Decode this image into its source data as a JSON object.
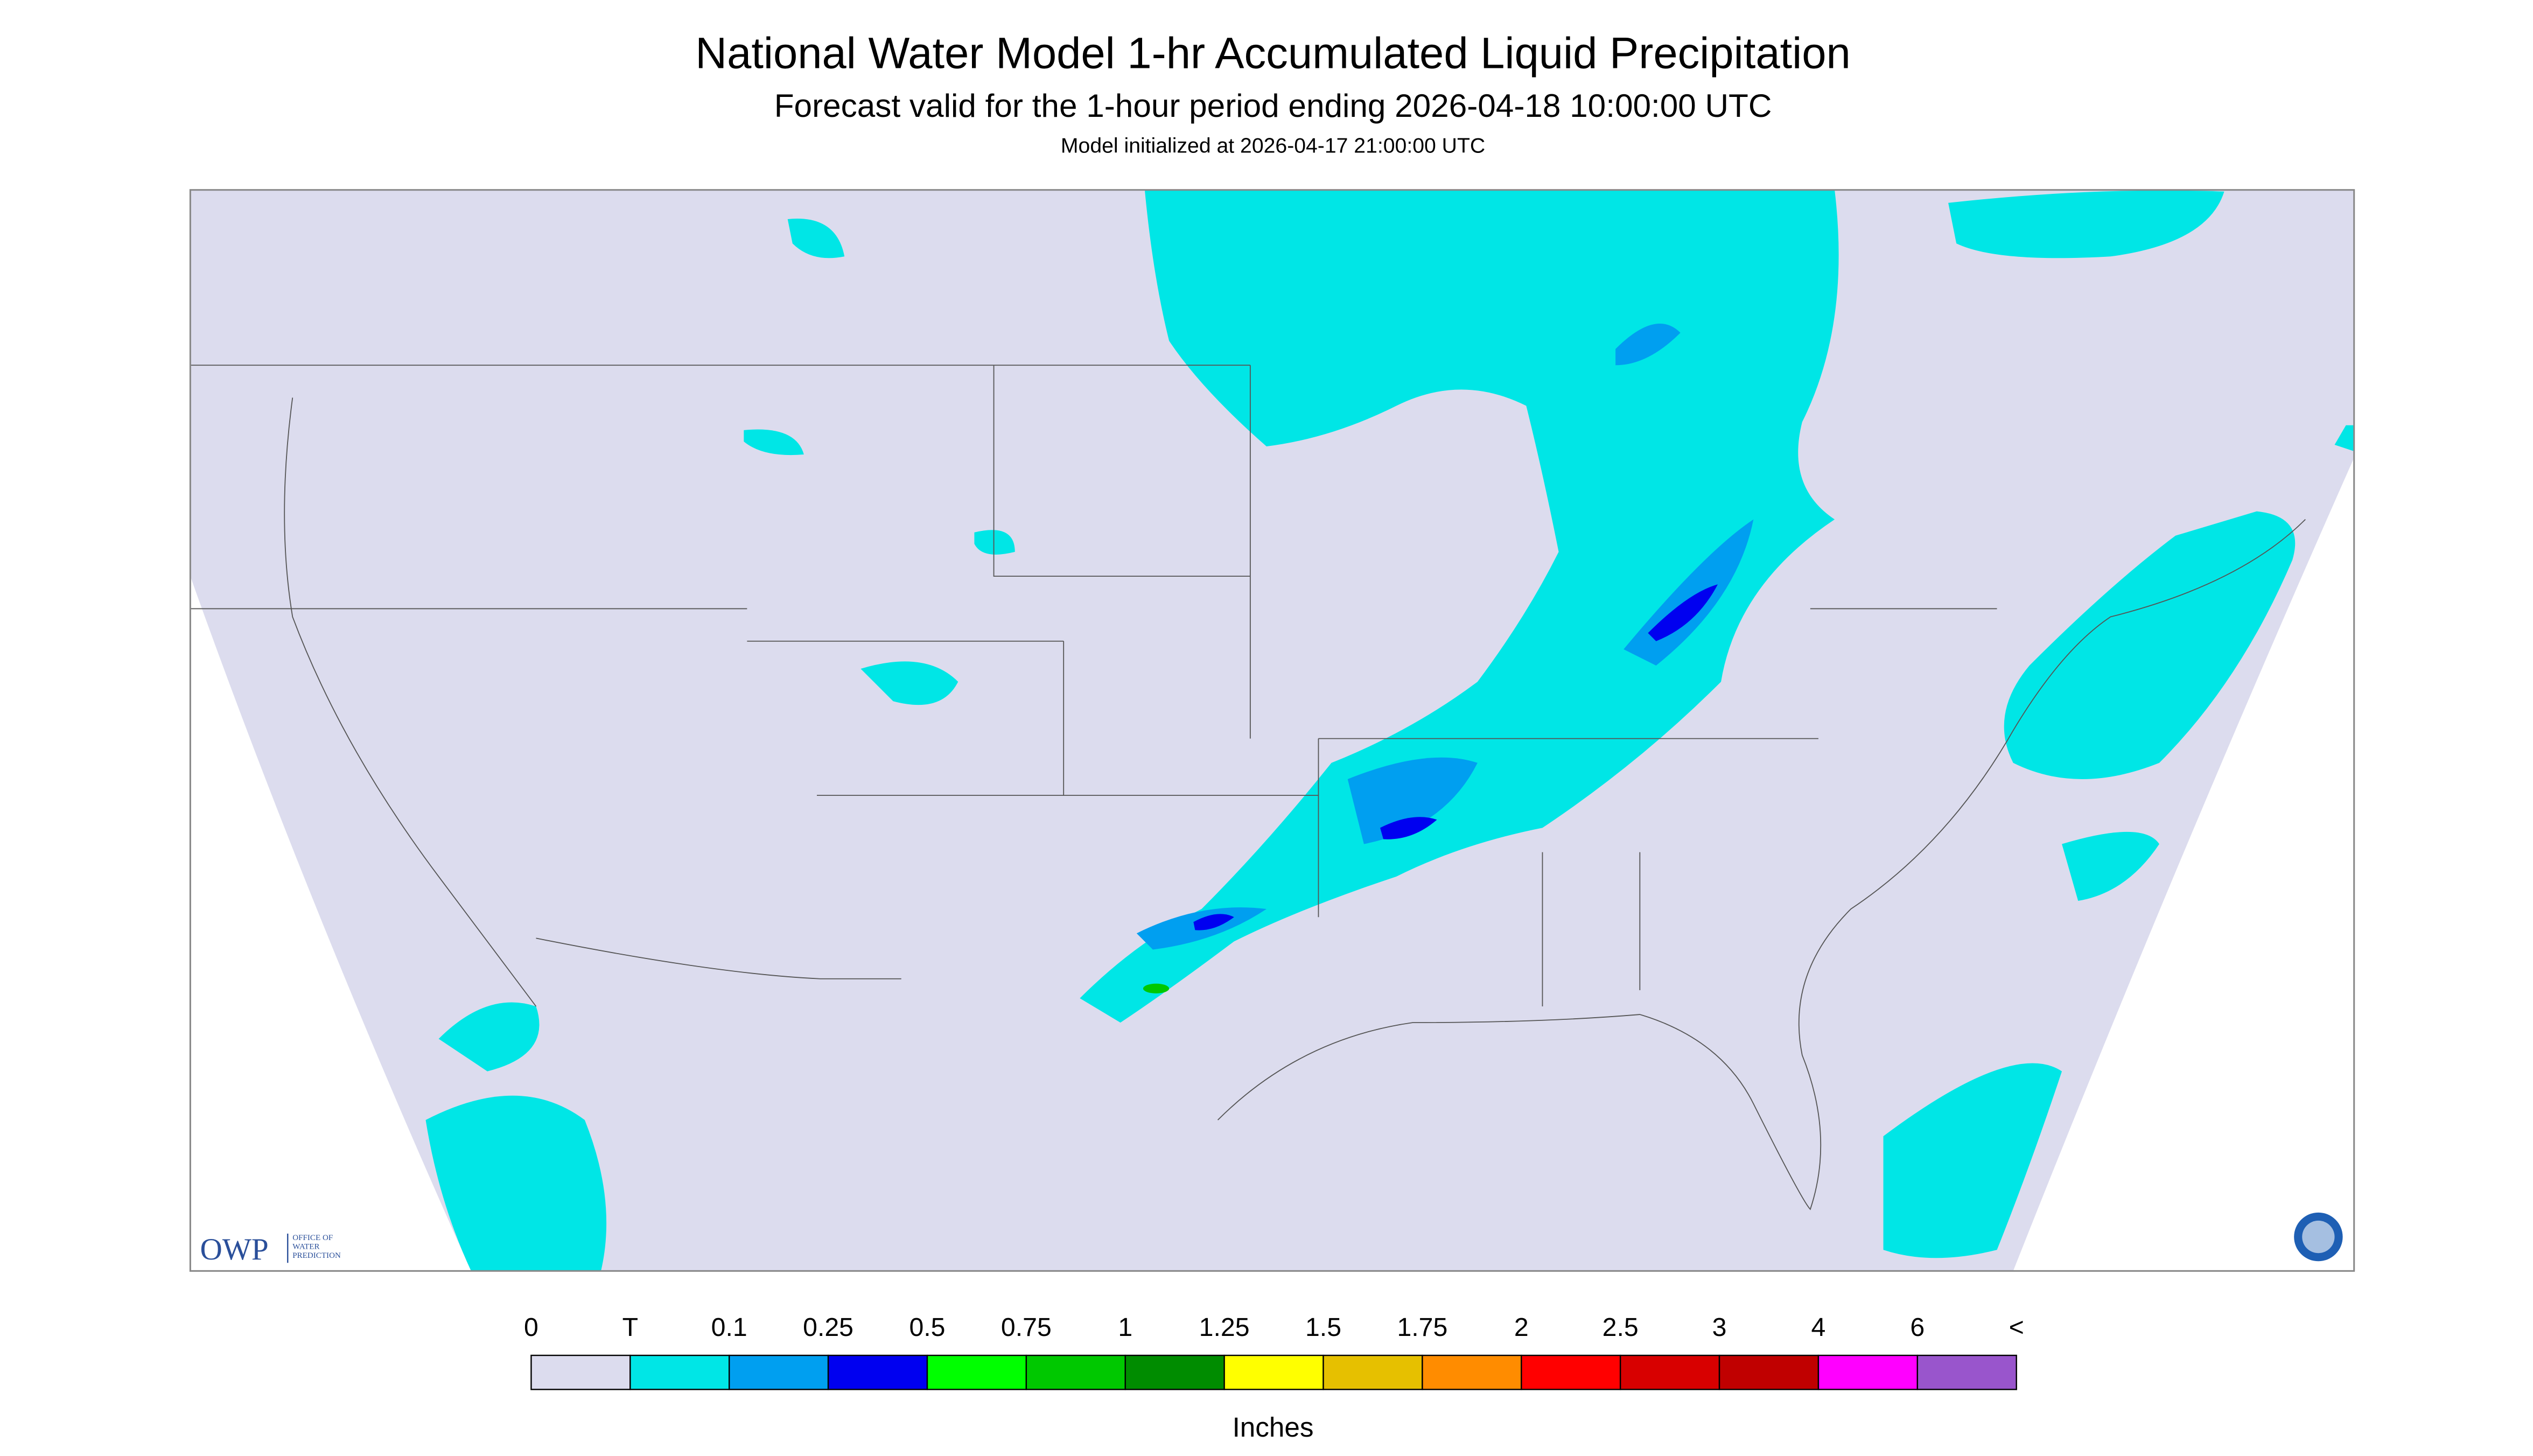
{
  "header": {
    "title": "National Water Model 1-hr Accumulated Liquid Precipitation",
    "subtitle": "Forecast valid for the 1-hour period ending 2026-04-18 10:00:00 UTC",
    "initialized": "Model initialized at 2026-04-17 21:00:00 UTC"
  },
  "logo": {
    "name": "OWP",
    "lines": [
      "OFFICE OF",
      "WATER",
      "PREDICTION"
    ]
  },
  "legend": {
    "labels": [
      "0",
      "T",
      "0.1",
      "0.25",
      "0.5",
      "0.75",
      "1",
      "1.25",
      "1.5",
      "1.75",
      "2",
      "2.5",
      "3",
      "4",
      "6",
      "<"
    ],
    "colors": [
      "#dcdcee",
      "#00e6e6",
      "#009ff0",
      "#0000f0",
      "#00ff00",
      "#00c800",
      "#008c00",
      "#ffff00",
      "#e6c000",
      "#ff8c00",
      "#ff0000",
      "#d80000",
      "#c00000",
      "#ff00ff",
      "#9955cc"
    ],
    "unit": "Inches"
  }
}
